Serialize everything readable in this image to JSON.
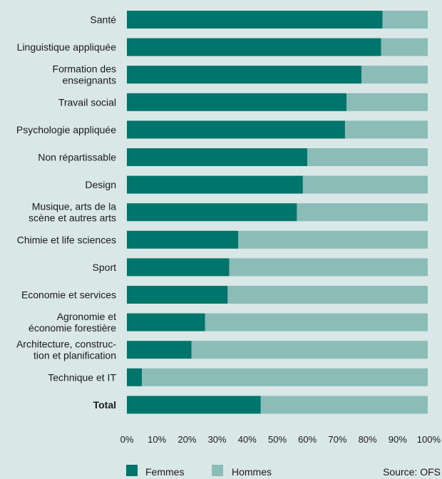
{
  "chart_data": {
    "type": "bar",
    "orientation": "horizontal",
    "stacked": true,
    "categories": [
      [
        "Santé"
      ],
      [
        "Linguistique appliquée"
      ],
      [
        "Formation des",
        "enseignants"
      ],
      [
        "Travail social"
      ],
      [
        "Psychologie appliquée"
      ],
      [
        "Non répartissable"
      ],
      [
        "Design"
      ],
      [
        "Musique, arts de la",
        "scène et autres arts"
      ],
      [
        "Chimie et life sciences"
      ],
      [
        "Sport"
      ],
      [
        "Economie et services"
      ],
      [
        "Agronomie et",
        "économie forestière"
      ],
      [
        "Architecture, construc-",
        "tion et planification"
      ],
      [
        "Technique et IT"
      ],
      [
        "Total"
      ]
    ],
    "bold_categories": [
      "Total"
    ],
    "series": [
      {
        "name": "Femmes",
        "color": "#00756b",
        "values": [
          85,
          84.5,
          78,
          73,
          72.5,
          60,
          58.5,
          56.5,
          37,
          34,
          33.5,
          26,
          21.5,
          5,
          44.5
        ]
      },
      {
        "name": "Hommes",
        "color": "#8bbcb8",
        "values": [
          15,
          15.5,
          22,
          27,
          27.5,
          40,
          41.5,
          43.5,
          63,
          66,
          66.5,
          74,
          78.5,
          95,
          55.5
        ]
      }
    ],
    "xlim": [
      0,
      100
    ],
    "x_ticks": [
      "0%",
      "10%",
      "20%",
      "30%",
      "40%",
      "50%",
      "60%",
      "70%",
      "80%",
      "90%",
      "100%"
    ],
    "grid": false,
    "legend_position": "bottom-left"
  },
  "source": "Source: OFS"
}
